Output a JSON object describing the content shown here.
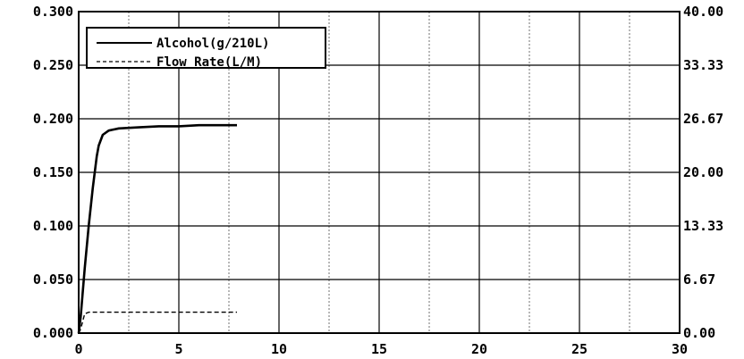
{
  "chart_data": {
    "type": "line",
    "title": "",
    "xlabel": "",
    "ylabel": "",
    "y2label": "",
    "xlim": [
      0,
      30
    ],
    "ylim": [
      0,
      0.3
    ],
    "y2lim": [
      0,
      40
    ],
    "x_ticks": [
      "0",
      "5",
      "10",
      "15",
      "20",
      "25",
      "30"
    ],
    "y_ticks_left": [
      "0.000",
      "0.050",
      "0.100",
      "0.150",
      "0.200",
      "0.250",
      "0.300"
    ],
    "y_ticks_right": [
      "0.00",
      "6.67",
      "13.33",
      "20.00",
      "26.67",
      "33.33",
      "40.00"
    ],
    "grid": true,
    "legend_position": "top-left",
    "series": [
      {
        "name": "Alcohol(g/210L)",
        "axis": "left",
        "style": "solid",
        "color": "#000000",
        "x": [
          0.0,
          0.1,
          0.3,
          0.5,
          0.7,
          0.9,
          1.0,
          1.2,
          1.5,
          2.0,
          3.0,
          4.0,
          5.0,
          6.0,
          7.0,
          7.9
        ],
        "y": [
          0.0,
          0.015,
          0.06,
          0.1,
          0.135,
          0.165,
          0.175,
          0.185,
          0.189,
          0.191,
          0.192,
          0.193,
          0.193,
          0.194,
          0.194,
          0.194
        ]
      },
      {
        "name": "Flow Rate(L/M)",
        "axis": "right",
        "style": "dashed",
        "color": "#000000",
        "x": [
          0.0,
          0.1,
          0.3,
          0.5,
          7.9
        ],
        "y": [
          0.0,
          0.5,
          2.4,
          2.6,
          2.6
        ]
      }
    ]
  }
}
